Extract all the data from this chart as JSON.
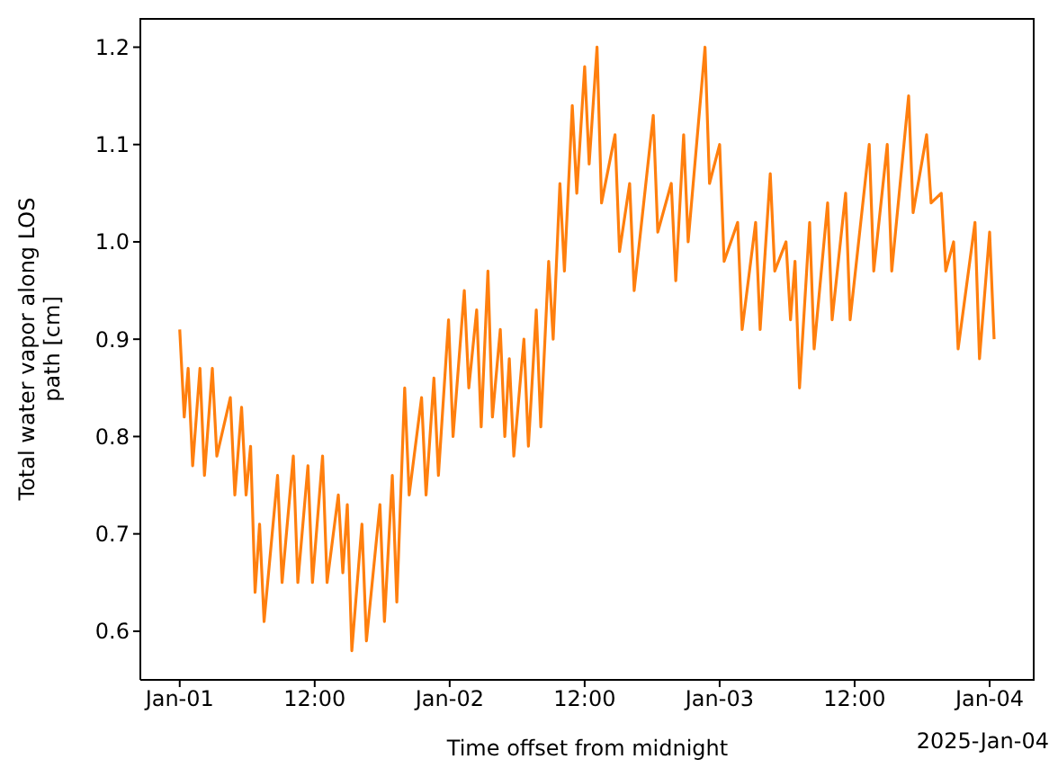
{
  "chart_data": {
    "type": "line",
    "xlabel": "Time offset from midnight",
    "ylabel": "Total water vapor along LOS path [cm]",
    "annotations": [
      "2025-Jan-04"
    ],
    "xlim": [
      "2024-12-31T20:30",
      "2025-01-04T04:00"
    ],
    "xticks": [
      {
        "value": "2025-01-01T00:00",
        "label": "Jan-01"
      },
      {
        "value": "2025-01-01T12:00",
        "label": "12:00"
      },
      {
        "value": "2025-01-02T00:00",
        "label": "Jan-02"
      },
      {
        "value": "2025-01-02T12:00",
        "label": "12:00"
      },
      {
        "value": "2025-01-03T00:00",
        "label": "Jan-03"
      },
      {
        "value": "2025-01-03T12:00",
        "label": "12:00"
      },
      {
        "value": "2025-01-04T00:00",
        "label": "Jan-04"
      }
    ],
    "ylim": [
      0.55,
      1.23
    ],
    "yticks": [
      0.6,
      0.7,
      0.8,
      0.9,
      {
        "value": 1,
        "label": "1.0"
      },
      1.1,
      1.2
    ],
    "x": [
      "2025-01-01T00:00",
      "2025-01-01T00:24",
      "2025-01-01T00:45",
      "2025-01-01T01:09",
      "2025-01-01T01:48",
      "2025-01-01T02:12",
      "2025-01-01T02:54",
      "2025-01-01T03:18",
      "2025-01-01T04:30",
      "2025-01-01T04:54",
      "2025-01-01T05:30",
      "2025-01-01T05:54",
      "2025-01-01T06:18",
      "2025-01-01T06:42",
      "2025-01-01T07:06",
      "2025-01-01T07:30",
      "2025-01-01T08:42",
      "2025-01-01T09:06",
      "2025-01-01T10:06",
      "2025-01-01T10:30",
      "2025-01-01T11:24",
      "2025-01-01T11:48",
      "2025-01-01T12:42",
      "2025-01-01T13:06",
      "2025-01-01T14:06",
      "2025-01-01T14:30",
      "2025-01-01T14:54",
      "2025-01-01T15:18",
      "2025-01-01T16:12",
      "2025-01-01T16:36",
      "2025-01-01T17:48",
      "2025-01-01T18:12",
      "2025-01-01T18:54",
      "2025-01-01T19:18",
      "2025-01-01T20:00",
      "2025-01-01T20:24",
      "2025-01-01T21:30",
      "2025-01-01T21:54",
      "2025-01-01T22:36",
      "2025-01-01T23:00",
      "2025-01-01T23:54",
      "2025-01-02T00:18",
      "2025-01-02T01:18",
      "2025-01-02T01:42",
      "2025-01-02T02:24",
      "2025-01-02T02:48",
      "2025-01-02T03:24",
      "2025-01-02T03:48",
      "2025-01-02T04:30",
      "2025-01-02T04:54",
      "2025-01-02T05:18",
      "2025-01-02T05:42",
      "2025-01-02T06:36",
      "2025-01-02T07:00",
      "2025-01-02T07:42",
      "2025-01-02T08:06",
      "2025-01-02T08:48",
      "2025-01-02T09:12",
      "2025-01-02T09:48",
      "2025-01-02T10:12",
      "2025-01-02T10:54",
      "2025-01-02T11:18",
      "2025-01-02T12:00",
      "2025-01-02T12:24",
      "2025-01-02T13:06",
      "2025-01-02T13:30",
      "2025-01-02T14:42",
      "2025-01-02T15:06",
      "2025-01-02T16:00",
      "2025-01-02T16:24",
      "2025-01-02T18:06",
      "2025-01-02T18:30",
      "2025-01-02T19:42",
      "2025-01-02T20:06",
      "2025-01-02T20:48",
      "2025-01-02T21:12",
      "2025-01-02T22:42",
      "2025-01-02T23:06",
      "2025-01-03T00:00",
      "2025-01-03T00:24",
      "2025-01-03T01:36",
      "2025-01-03T02:00",
      "2025-01-03T03:12",
      "2025-01-03T03:36",
      "2025-01-03T04:30",
      "2025-01-03T04:54",
      "2025-01-03T05:54",
      "2025-01-03T06:18",
      "2025-01-03T06:42",
      "2025-01-03T07:06",
      "2025-01-03T08:00",
      "2025-01-03T08:24",
      "2025-01-03T09:36",
      "2025-01-03T10:00",
      "2025-01-03T11:12",
      "2025-01-03T11:36",
      "2025-01-03T13:18",
      "2025-01-03T13:42",
      "2025-01-03T14:54",
      "2025-01-03T15:18",
      "2025-01-03T16:48",
      "2025-01-03T17:12",
      "2025-01-03T18:24",
      "2025-01-03T18:48",
      "2025-01-03T19:42",
      "2025-01-03T20:06",
      "2025-01-03T20:48",
      "2025-01-03T21:12",
      "2025-01-03T22:42",
      "2025-01-03T23:06",
      "2025-01-04T00:00",
      "2025-01-04T00:24"
    ],
    "series": [
      {
        "color": "#ff7f0e",
        "values": [
          0.91,
          0.82,
          0.87,
          0.77,
          0.87,
          0.76,
          0.87,
          0.78,
          0.84,
          0.74,
          0.83,
          0.74,
          0.79,
          0.64,
          0.71,
          0.61,
          0.76,
          0.65,
          0.78,
          0.65,
          0.77,
          0.65,
          0.78,
          0.65,
          0.74,
          0.66,
          0.73,
          0.58,
          0.71,
          0.59,
          0.73,
          0.61,
          0.76,
          0.63,
          0.85,
          0.74,
          0.84,
          0.74,
          0.86,
          0.76,
          0.92,
          0.8,
          0.95,
          0.85,
          0.93,
          0.81,
          0.97,
          0.82,
          0.91,
          0.8,
          0.88,
          0.78,
          0.9,
          0.79,
          0.93,
          0.81,
          0.98,
          0.9,
          1.06,
          0.97,
          1.14,
          1.05,
          1.18,
          1.08,
          1.2,
          1.04,
          1.11,
          0.99,
          1.06,
          0.95,
          1.13,
          1.01,
          1.06,
          0.96,
          1.11,
          1.0,
          1.2,
          1.06,
          1.1,
          0.98,
          1.02,
          0.91,
          1.02,
          0.91,
          1.07,
          0.97,
          1.0,
          0.92,
          0.98,
          0.85,
          1.02,
          0.89,
          1.04,
          0.92,
          1.05,
          0.92,
          1.1,
          0.97,
          1.1,
          0.97,
          1.15,
          1.03,
          1.11,
          1.04,
          1.05,
          0.97,
          1.0,
          0.89,
          1.02,
          0.88,
          1.01,
          0.9
        ]
      }
    ]
  }
}
